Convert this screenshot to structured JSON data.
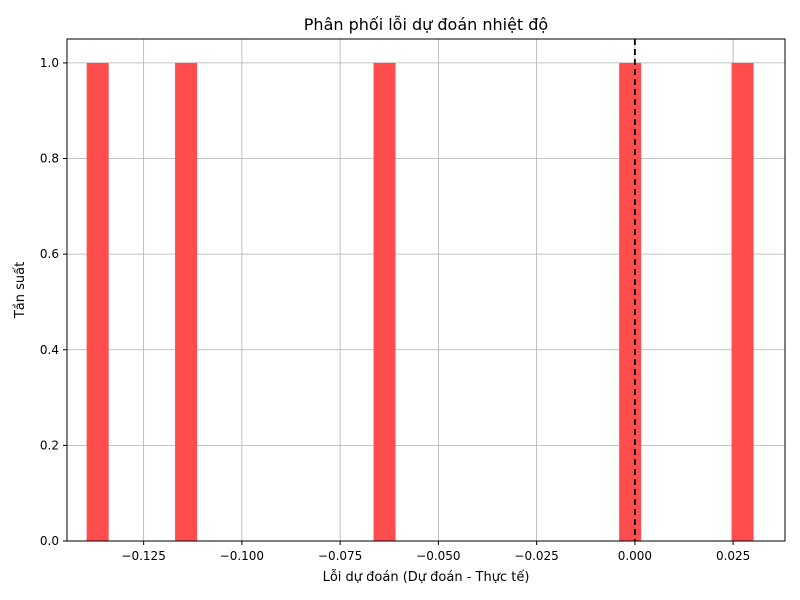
{
  "chart_data": {
    "type": "bar",
    "title": "Phân phối lỗi dự đoán nhiệt độ",
    "xlabel": "Lỗi dự đoán (Dự đoán - Thực tế)",
    "ylabel": "Tần suất",
    "xlim": [
      -0.1445,
      0.0382
    ],
    "ylim": [
      0,
      1.05
    ],
    "xticks": [
      -0.125,
      -0.1,
      -0.075,
      -0.05,
      -0.025,
      0.0,
      0.025
    ],
    "xtick_labels": [
      "−0.125",
      "−0.100",
      "−0.075",
      "−0.050",
      "−0.025",
      "0.000",
      "0.025"
    ],
    "yticks": [
      0.0,
      0.2,
      0.4,
      0.6,
      0.8,
      1.0
    ],
    "ytick_labels": [
      "0.0",
      "0.2",
      "0.4",
      "0.6",
      "0.8",
      "1.0"
    ],
    "grid": true,
    "bars": [
      {
        "x0": -0.1395,
        "x1": -0.1339,
        "count": 1
      },
      {
        "x0": -0.117,
        "x1": -0.1114,
        "count": 1
      },
      {
        "x0": -0.0665,
        "x1": -0.0609,
        "count": 1
      },
      {
        "x0": -0.004,
        "x1": 0.0016,
        "count": 1
      },
      {
        "x0": 0.0246,
        "x1": 0.0302,
        "count": 1
      }
    ],
    "bar_color": "#ff4d4d",
    "reference_line": {
      "x": 0.0,
      "style": "dashed",
      "color": "#000000"
    }
  }
}
